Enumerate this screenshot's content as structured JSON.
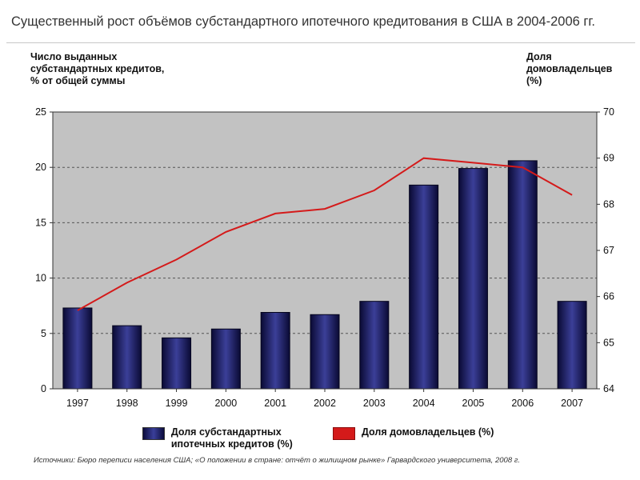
{
  "title": "Существенный рост объёмов субстандартного ипотечного кредитования в США в 2004-2006 гг.",
  "source": "Источники: Бюро переписи населения США; «О положении в стране: отчёт о жилищном рынке» Гарвардского университета, 2008 г.",
  "legend": {
    "bars": "Доля субстандартных ипотечных кредитов (%)",
    "line": "Доля домовладельцев (%)"
  },
  "colors": {
    "bar": "#1c1f6a",
    "line": "#d41a1a",
    "plot_bg": "#c2c2c2",
    "grid": "#555555"
  },
  "chart_data": {
    "type": "bar",
    "categories": [
      "1997",
      "1998",
      "1999",
      "2000",
      "2001",
      "2002",
      "2003",
      "2004",
      "2005",
      "2006",
      "2007"
    ],
    "ylabel_left": "Число выданных субстандартных кредитов, % от общей суммы",
    "ylabel_right": "Доля домовладельцев (%)",
    "ylim_left": [
      0,
      25
    ],
    "yticks_left": [
      0,
      5,
      10,
      15,
      20,
      25
    ],
    "ylim_right": [
      64,
      70
    ],
    "yticks_right": [
      64,
      65,
      66,
      67,
      68,
      69,
      70
    ],
    "grid": "horizontal dashed",
    "legend_position": "bottom",
    "series": [
      {
        "name": "Доля субстандартных ипотечных кредитов (%)",
        "type": "bar",
        "axis": "left",
        "values": [
          7.3,
          5.7,
          4.6,
          5.4,
          6.9,
          6.7,
          7.9,
          18.4,
          19.9,
          20.6,
          7.9
        ]
      },
      {
        "name": "Доля домовладельцев (%)",
        "type": "line",
        "axis": "right",
        "values": [
          65.7,
          66.3,
          66.8,
          67.4,
          67.8,
          67.9,
          68.3,
          69.0,
          68.9,
          68.8,
          68.2
        ]
      }
    ]
  }
}
